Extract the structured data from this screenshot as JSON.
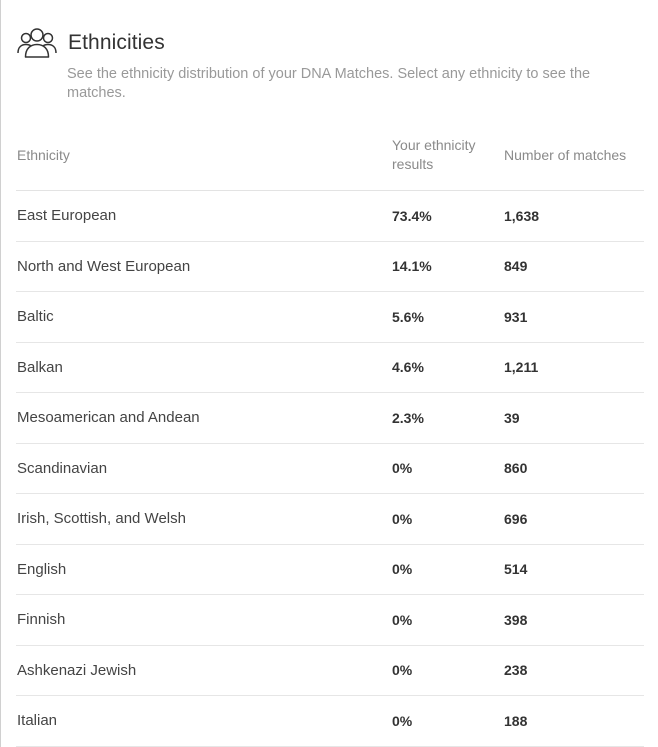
{
  "header": {
    "icon": "people-group-icon",
    "title": "Ethnicities",
    "subtitle": "See the ethnicity distribution of your DNA Matches. Select any ethnicity to see the matches."
  },
  "table": {
    "columns": {
      "ethnicity": "Ethnicity",
      "results": "Your ethnicity results",
      "matches": "Number of matches"
    },
    "rows": [
      {
        "ethnicity": "East European",
        "results": "73.4%",
        "matches": "1,638"
      },
      {
        "ethnicity": "North and West European",
        "results": "14.1%",
        "matches": "849"
      },
      {
        "ethnicity": "Baltic",
        "results": "5.6%",
        "matches": "931"
      },
      {
        "ethnicity": "Balkan",
        "results": "4.6%",
        "matches": "1,211"
      },
      {
        "ethnicity": "Mesoamerican and Andean",
        "results": "2.3%",
        "matches": "39"
      },
      {
        "ethnicity": "Scandinavian",
        "results": "0%",
        "matches": "860"
      },
      {
        "ethnicity": "Irish, Scottish, and Welsh",
        "results": "0%",
        "matches": "696"
      },
      {
        "ethnicity": "English",
        "results": "0%",
        "matches": "514"
      },
      {
        "ethnicity": "Finnish",
        "results": "0%",
        "matches": "398"
      },
      {
        "ethnicity": "Ashkenazi Jewish",
        "results": "0%",
        "matches": "238"
      },
      {
        "ethnicity": "Italian",
        "results": "0%",
        "matches": "188"
      }
    ]
  }
}
